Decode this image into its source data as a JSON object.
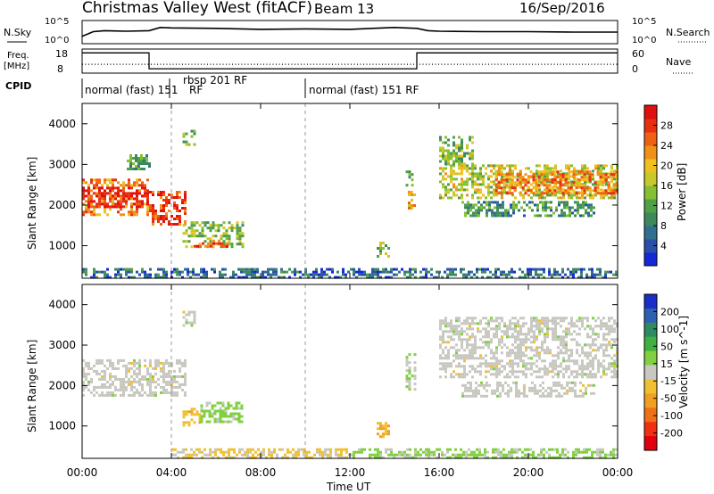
{
  "header": {
    "title": "Christmas Valley West (fitACF)",
    "beam": "Beam 13",
    "date": "16/Sep/2016"
  },
  "nsky_panel": {
    "left_label": "N.Sky",
    "left_ticks": [
      "10^5",
      "10^0"
    ],
    "right_ticks": [
      "10^5",
      "10^0"
    ],
    "right_label": "N.Search"
  },
  "freq_panel": {
    "left_label_1": "Freq.",
    "left_label_2": "[MHz]",
    "left_ticks": [
      "18",
      "8"
    ],
    "right_ticks": [
      "60",
      "0"
    ],
    "right_label": "Nave"
  },
  "cpid_panel": {
    "label": "CPID",
    "segments": [
      "normal (fast) 151",
      "rbsp 201 RF",
      "normal (fast) 151 RF"
    ],
    "overlap_label": "RF"
  },
  "x_axis": {
    "label": "Time UT",
    "ticks": [
      "00:00",
      "04:00",
      "08:00",
      "12:00",
      "16:00",
      "20:00",
      "00:00"
    ]
  },
  "power_panel": {
    "ylabel": "Slant Range [km]",
    "yticks": [
      "4000",
      "3000",
      "2000",
      "1000"
    ],
    "colorbar_label": "Power [dB]",
    "colorbar_ticks": [
      "28",
      "24",
      "20",
      "16",
      "12",
      "8",
      "4"
    ],
    "colors": [
      "#1428d8",
      "#2a4fa8",
      "#2f6f8f",
      "#3c8a5c",
      "#4fa048",
      "#86c032",
      "#c8c82a",
      "#f0c020",
      "#f09018",
      "#f06012",
      "#e8300e",
      "#e01010"
    ]
  },
  "velocity_panel": {
    "ylabel": "Slant Range [km]",
    "yticks": [
      "4000",
      "3000",
      "2000",
      "1000"
    ],
    "colorbar_label": "Velocity [m s^-1]",
    "colorbar_ticks": [
      "200",
      "100",
      "50",
      "15",
      "-15",
      "-50",
      "-100",
      "-200"
    ],
    "colors": [
      "#1a2ec8",
      "#2f5fb0",
      "#2e8a60",
      "#40b040",
      "#80d040",
      "#c8c8c0",
      "#f0c030",
      "#f0a020",
      "#f07018",
      "#f03010",
      "#e00010"
    ],
    "ground_scatter_color": "#c8c8c0"
  },
  "chart_data": [
    {
      "type": "line",
      "name": "nsky",
      "x_hours": [
        0,
        0.5,
        1,
        2,
        3,
        3.5,
        4,
        6,
        8,
        10,
        12,
        13,
        14,
        15,
        15.5,
        16,
        18,
        20,
        22,
        24
      ],
      "y": [
        1.6,
        2.6,
        2.8,
        2.7,
        2.8,
        3.5,
        3.4,
        3.3,
        3.1,
        3.2,
        3.1,
        3.3,
        3.5,
        3.3,
        2.8,
        2.7,
        2.6,
        2.6,
        2.5,
        2.5
      ],
      "ylim": [
        0,
        5
      ]
    },
    {
      "type": "line",
      "name": "frequency_MHz",
      "x_hours": [
        0,
        3,
        3,
        15,
        15,
        24
      ],
      "y": [
        16.4,
        16.4,
        9.8,
        9.8,
        16.4,
        16.4
      ],
      "ylim": [
        8,
        18
      ]
    },
    {
      "type": "line",
      "name": "nave",
      "x_hours": [
        0,
        24
      ],
      "y": [
        22,
        22
      ],
      "ylim": [
        0,
        60
      ]
    },
    {
      "type": "heatmap",
      "name": "power_dB",
      "xlim_hours": [
        0,
        24
      ],
      "ylim_km": [
        200,
        4500
      ],
      "clim": [
        0,
        30
      ],
      "patches": [
        {
          "t0": 0,
          "t1": 3,
          "r0": 1750,
          "r1": 2650,
          "v": 22
        },
        {
          "t0": 0,
          "t1": 3,
          "r0": 1950,
          "r1": 2450,
          "v": 29
        },
        {
          "t0": 3,
          "t1": 4.6,
          "r0": 1500,
          "r1": 2350,
          "v": 26
        },
        {
          "t0": 2,
          "t1": 3,
          "r0": 2900,
          "r1": 3250,
          "v": 10
        },
        {
          "t0": 4.5,
          "t1": 7.2,
          "r0": 950,
          "r1": 1600,
          "v": 14
        },
        {
          "t0": 5,
          "t1": 6.5,
          "r0": 1000,
          "r1": 1150,
          "v": 25
        },
        {
          "t0": 4.5,
          "t1": 5,
          "r0": 3500,
          "r1": 3850,
          "v": 12
        },
        {
          "t0": 13.2,
          "t1": 13.7,
          "r0": 750,
          "r1": 1100,
          "v": 12
        },
        {
          "t0": 14.6,
          "t1": 14.9,
          "r0": 1900,
          "r1": 2350,
          "v": 20
        },
        {
          "t0": 14.5,
          "t1": 14.8,
          "r0": 2500,
          "r1": 2850,
          "v": 10
        },
        {
          "t0": 16,
          "t1": 24,
          "r0": 2200,
          "r1": 3000,
          "v": 16
        },
        {
          "t0": 16,
          "t1": 17.5,
          "r0": 3000,
          "r1": 3700,
          "v": 13
        },
        {
          "t0": 18.5,
          "t1": 24,
          "r0": 2300,
          "r1": 2850,
          "v": 22
        },
        {
          "t0": 17,
          "t1": 23,
          "r0": 1750,
          "r1": 2100,
          "v": 9
        },
        {
          "t0": 0,
          "t1": 24,
          "r0": 220,
          "r1": 450,
          "v": 6
        }
      ]
    },
    {
      "type": "heatmap",
      "name": "velocity_m_s",
      "xlim_hours": [
        0,
        24
      ],
      "ylim_km": [
        200,
        4500
      ],
      "clim": [
        -200,
        200
      ],
      "patches": [
        {
          "t0": 0,
          "t1": 4.6,
          "r0": 1750,
          "r1": 2650,
          "v": 0
        },
        {
          "t0": 4.5,
          "t1": 5.3,
          "r0": 1000,
          "r1": 1450,
          "v": -40
        },
        {
          "t0": 5.3,
          "t1": 7.2,
          "r0": 1100,
          "r1": 1600,
          "v": 30
        },
        {
          "t0": 4.5,
          "t1": 5,
          "r0": 3500,
          "r1": 3850,
          "v": 0
        },
        {
          "t0": 13.2,
          "t1": 13.7,
          "r0": 750,
          "r1": 1100,
          "v": -50
        },
        {
          "t0": 14.5,
          "t1": 14.9,
          "r0": 1900,
          "r1": 2800,
          "v": 5
        },
        {
          "t0": 16,
          "t1": 24,
          "r0": 2200,
          "r1": 3700,
          "v": 0
        },
        {
          "t0": 17,
          "t1": 23,
          "r0": 1750,
          "r1": 2100,
          "v": 0
        },
        {
          "t0": 4,
          "t1": 12,
          "r0": 220,
          "r1": 450,
          "v": -25
        },
        {
          "t0": 12,
          "t1": 24,
          "r0": 220,
          "r1": 450,
          "v": 25
        }
      ]
    }
  ]
}
